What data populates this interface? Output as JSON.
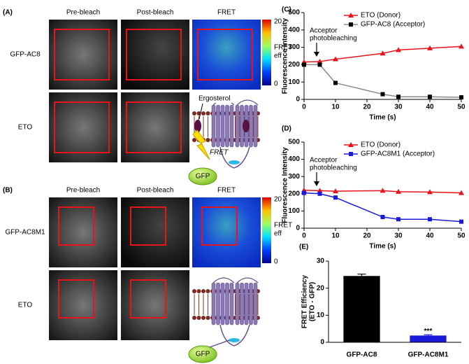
{
  "panels": {
    "a": {
      "label": "(A)",
      "headers": [
        "Pre-bleach",
        "Post-bleach",
        "FRET"
      ],
      "rows": [
        "GFP-AC8",
        "ETO"
      ],
      "colorbar": {
        "max": 20,
        "title": [
          "FRET",
          "eff"
        ],
        "min": 0
      },
      "diagram": {
        "lipid": "Ergosterol",
        "fret": "FRET",
        "gfp": "GFP"
      }
    },
    "b": {
      "label": "(B)",
      "headers": [
        "Pre-bleach",
        "Post-bleach",
        "FRET"
      ],
      "rows": [
        "GFP-AC8M1",
        "ETO"
      ],
      "colorbar": {
        "max": 20,
        "title": [
          "FRET",
          "eff"
        ],
        "min": 0
      },
      "diagram": {
        "gfp": "GFP"
      }
    }
  },
  "chart_data": [
    {
      "type": "line",
      "label": "(C)",
      "xlabel": "Time (s)",
      "ylabel": "Fluorescence Intensity",
      "annotation": [
        "Acceptor",
        "photobleaching"
      ],
      "x": [
        0,
        5,
        10,
        25,
        30,
        40,
        50
      ],
      "series": [
        {
          "name": "ETO (Donor)",
          "color": "#e8131b",
          "marker": "triangle",
          "values": [
            215,
            218,
            232,
            265,
            285,
            295,
            305
          ]
        },
        {
          "name": "GFP-AC8 (Acceptor)",
          "color": "#000000",
          "marker": "square",
          "line_color": "#888888",
          "values": [
            200,
            200,
            95,
            30,
            15,
            15,
            12
          ]
        }
      ],
      "xlim": [
        0,
        50
      ],
      "xticks": [
        0,
        10,
        20,
        30,
        40,
        50
      ],
      "ylim": [
        0,
        500
      ],
      "yticks": [
        0,
        100,
        200,
        300,
        400,
        500
      ]
    },
    {
      "type": "line",
      "label": "(D)",
      "xlabel": "Time (s)",
      "ylabel": "Fluorescence Intensity",
      "annotation": [
        "Acceptor",
        "photobleaching"
      ],
      "x": [
        0,
        5,
        10,
        25,
        30,
        40,
        50
      ],
      "series": [
        {
          "name": "ETO (Donor)",
          "color": "#e8131b",
          "marker": "triangle",
          "values": [
            220,
            218,
            215,
            218,
            212,
            210,
            205
          ]
        },
        {
          "name": "GFP-AC8M1 (Acceptor)",
          "color": "#1a1adb",
          "marker": "square",
          "values": [
            205,
            200,
            178,
            65,
            52,
            52,
            38
          ]
        }
      ],
      "xlim": [
        0,
        50
      ],
      "xticks": [
        0,
        10,
        20,
        30,
        40,
        50
      ],
      "ylim": [
        0,
        500
      ],
      "yticks": [
        0,
        100,
        200,
        300,
        400,
        500
      ]
    },
    {
      "type": "bar",
      "label": "(E)",
      "ylabel": [
        "FRET Efficiency",
        "(ETO - GFP)"
      ],
      "annotation": "***",
      "categories": [
        "GFP-AC8",
        "GFP-AC8M1"
      ],
      "values": [
        24.5,
        2.5
      ],
      "errors": [
        0.7,
        0.3
      ],
      "colors": [
        "#000000",
        "#1a1adb"
      ],
      "ylim": [
        0,
        30
      ],
      "yticks": [
        0,
        10,
        20,
        30
      ]
    }
  ]
}
